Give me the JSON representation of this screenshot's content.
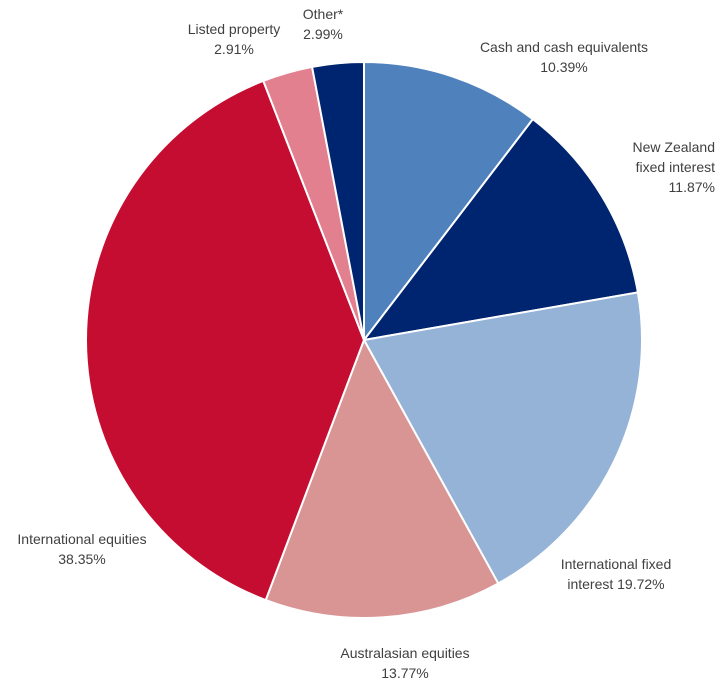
{
  "chart_data": {
    "type": "pie",
    "title": "",
    "start_angle_deg": 0,
    "direction": "clockwise",
    "slices": [
      {
        "label": "Cash and cash equivalents",
        "value": 10.39,
        "display": [
          "Cash and cash equivalents",
          "10.39%"
        ],
        "color": "#4F81BD"
      },
      {
        "label": "New Zealand fixed interest",
        "value": 11.87,
        "display": [
          "New Zealand",
          "fixed interest",
          "11.87%"
        ],
        "color": "#002570"
      },
      {
        "label": "International fixed interest",
        "value": 19.72,
        "display": [
          "International fixed",
          "interest 19.72%"
        ],
        "color": "#95B3D7"
      },
      {
        "label": "Australasian equities",
        "value": 13.77,
        "display": [
          "Australasian equities",
          "13.77%"
        ],
        "color": "#D99594"
      },
      {
        "label": "International equities",
        "value": 38.35,
        "display": [
          "International equities",
          "38.35%"
        ],
        "color": "#C50D31"
      },
      {
        "label": "Listed property",
        "value": 2.91,
        "display": [
          "Listed property",
          "2.91%"
        ],
        "color": "#E3808F"
      },
      {
        "label": "Other*",
        "value": 2.99,
        "display": [
          "Other*",
          "2.99%"
        ],
        "color": "#002570"
      }
    ]
  }
}
